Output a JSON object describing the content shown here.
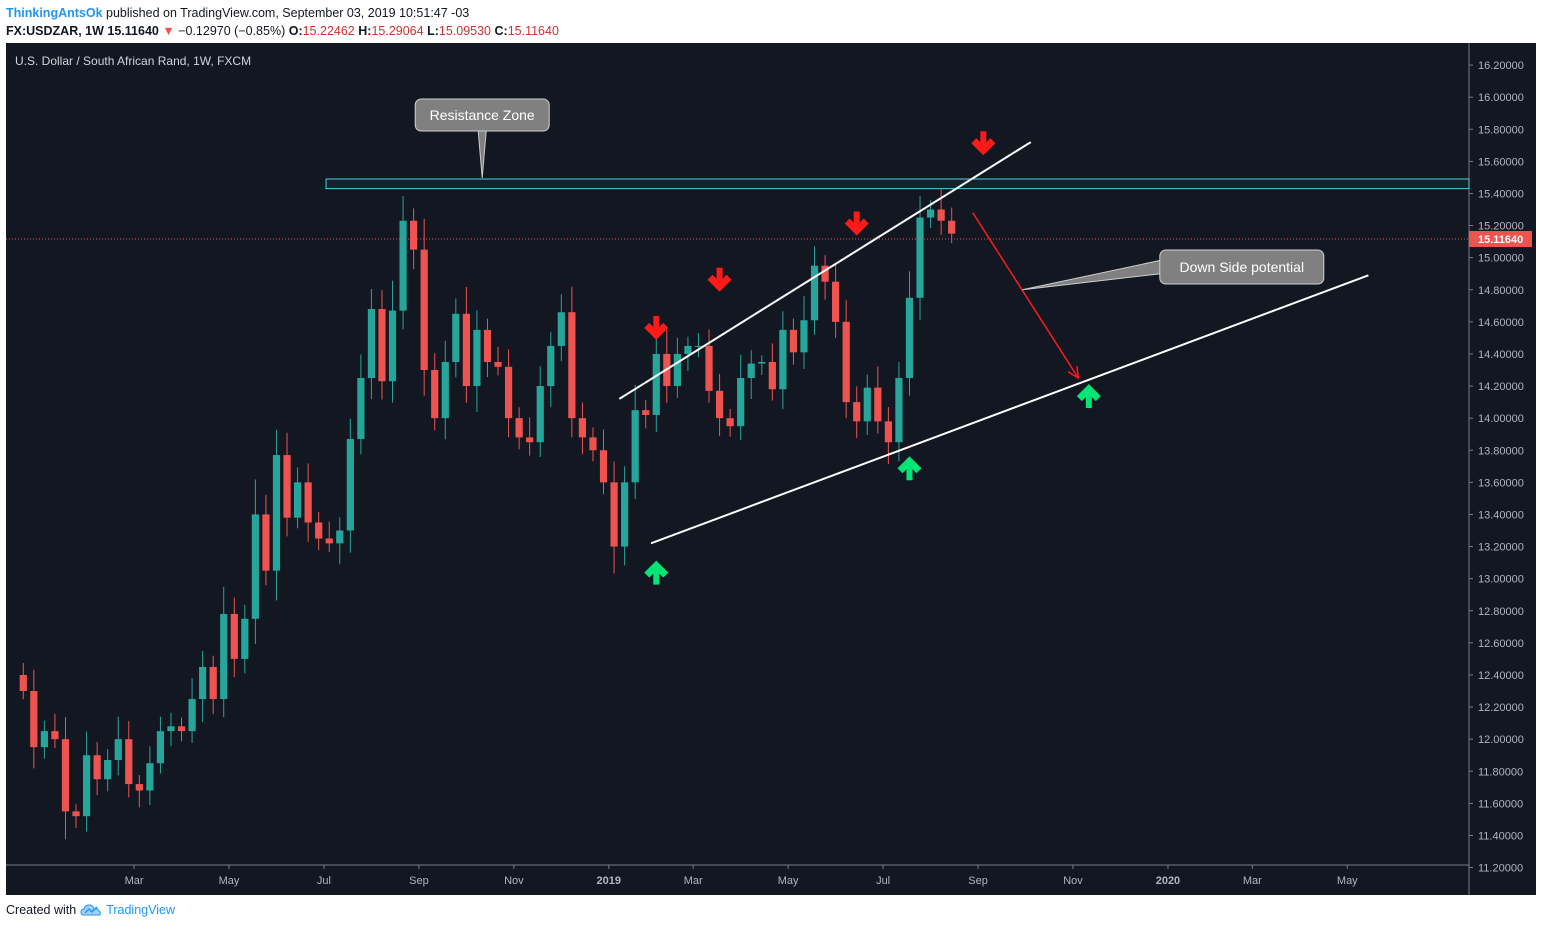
{
  "header": {
    "author": "ThinkingAntsOk",
    "published": "published on TradingView.com, September 03, 2019 10:51:47 -03",
    "symbol": "FX:USDZAR, 1W",
    "last": "15.11640",
    "change_arrow": "▼",
    "change": "−0.12970 (−0.85%)",
    "o_label": "O:",
    "o": "15.22462",
    "h_label": "H:",
    "h": "15.29064",
    "l_label": "L:",
    "l": "15.09530",
    "c_label": "C:",
    "c": "15.11640"
  },
  "footer": {
    "created": "Created with",
    "brand": "TradingView",
    "logo_icon": "tradingview-cloud-icon"
  },
  "colors": {
    "background": "#131722",
    "up": "#26a69a",
    "down": "#ef5350",
    "zone": "#4dd0e1",
    "trend": "#ffffff",
    "arrow_down": "#ff1a1a",
    "arrow_up": "#00e676",
    "projection": "#ff1a1a"
  },
  "chart_data": {
    "type": "candlestick",
    "title": "U.S. Dollar / South African Rand, 1W, FXCM",
    "ylim": [
      11.1,
      16.25
    ],
    "y_ticks": [
      "16.20000",
      "16.00000",
      "15.80000",
      "15.60000",
      "15.40000",
      "15.20000",
      "15.00000",
      "14.80000",
      "14.60000",
      "14.40000",
      "14.20000",
      "14.00000",
      "13.80000",
      "13.60000",
      "13.40000",
      "13.20000",
      "13.00000",
      "12.80000",
      "12.60000",
      "12.40000",
      "12.20000",
      "12.00000",
      "11.80000",
      "11.60000",
      "11.40000",
      "11.20000"
    ],
    "x_ticks": [
      {
        "label": "Mar",
        "week": 11
      },
      {
        "label": "May",
        "week": 20
      },
      {
        "label": "Jul",
        "week": 29
      },
      {
        "label": "Sep",
        "week": 38
      },
      {
        "label": "Nov",
        "week": 47
      },
      {
        "label": "2019",
        "week": 56
      },
      {
        "label": "Mar",
        "week": 64
      },
      {
        "label": "May",
        "week": 73
      },
      {
        "label": "Jul",
        "week": 82
      },
      {
        "label": "Sep",
        "week": 91
      },
      {
        "label": "Nov",
        "week": 100
      },
      {
        "label": "2020",
        "week": 109
      },
      {
        "label": "Mar",
        "week": 117
      },
      {
        "label": "May",
        "week": 126
      }
    ],
    "last_price": "15.11640",
    "closes": [
      12.3,
      11.95,
      12.05,
      12.0,
      11.55,
      11.52,
      11.9,
      11.75,
      11.87,
      12.0,
      11.72,
      11.68,
      11.85,
      12.05,
      12.08,
      12.05,
      12.25,
      12.45,
      12.25,
      12.78,
      12.5,
      12.75,
      13.4,
      13.05,
      13.77,
      13.38,
      13.6,
      13.35,
      13.25,
      13.22,
      13.3,
      13.87,
      14.25,
      14.68,
      14.23,
      14.67,
      15.23,
      15.05,
      14.3,
      14.0,
      14.35,
      14.65,
      14.2,
      14.55,
      14.35,
      14.32,
      14.0,
      13.88,
      13.85,
      14.2,
      14.45,
      14.66,
      14.0,
      13.88,
      13.8,
      13.6,
      13.2,
      13.6,
      14.05,
      14.02,
      14.4,
      14.2,
      14.4,
      14.45,
      14.45,
      14.17,
      14.0,
      13.95,
      14.25,
      14.34,
      14.35,
      14.18,
      14.55,
      14.41,
      14.61,
      14.95,
      14.85,
      14.6,
      14.1,
      13.98,
      14.19,
      13.98,
      13.85,
      14.25,
      14.75,
      15.25,
      15.3,
      15.23,
      15.15
    ],
    "annotations": {
      "resistance_zone_label": "Resistance Zone",
      "down_side_label": "Down Side potential",
      "resistance_zone": [
        15.43,
        15.49
      ],
      "upper_channel": [
        {
          "week": 57,
          "price": 14.12
        },
        {
          "week": 96,
          "price": 15.72
        }
      ],
      "lower_channel": [
        {
          "week": 60,
          "price": 13.22
        },
        {
          "week": 128,
          "price": 14.89
        }
      ],
      "projection": [
        {
          "week": 90.5,
          "price": 15.28
        },
        {
          "week": 100.5,
          "price": 14.25
        }
      ],
      "down_arrows": [
        {
          "week": 60.5,
          "price": 14.55
        },
        {
          "week": 66.5,
          "price": 14.85
        },
        {
          "week": 79.5,
          "price": 15.2
        },
        {
          "week": 91.5,
          "price": 15.7
        }
      ],
      "up_arrows": [
        {
          "week": 60.5,
          "price": 13.05
        },
        {
          "week": 84.5,
          "price": 13.7
        },
        {
          "week": 101.5,
          "price": 14.15
        }
      ]
    }
  }
}
